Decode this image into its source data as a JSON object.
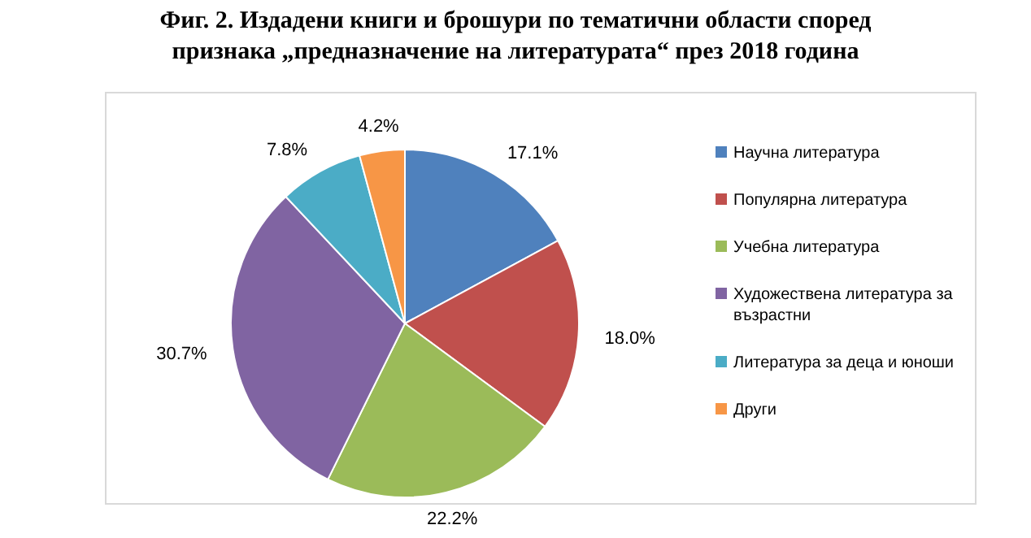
{
  "chart_data": {
    "type": "pie",
    "title": "Фиг. 2. Издадени книги и брошури по тематични области според признака „предназначение на литературата“ през 2018 година",
    "categories": [
      "Научна литература",
      "Популярна литература",
      "Учебна литература",
      "Художествена литература за възрастни",
      "Литература за деца и юноши",
      "Други"
    ],
    "values": [
      17.1,
      18.0,
      22.2,
      30.7,
      7.8,
      4.2
    ],
    "value_labels": [
      "17.1%",
      "18.0%",
      "22.2%",
      "30.7%",
      "7.8%",
      "4.2%"
    ],
    "colors": [
      "#4f81bd",
      "#c0504d",
      "#9bbb59",
      "#8064a2",
      "#4bacc6",
      "#f79646"
    ],
    "legend": "right"
  }
}
